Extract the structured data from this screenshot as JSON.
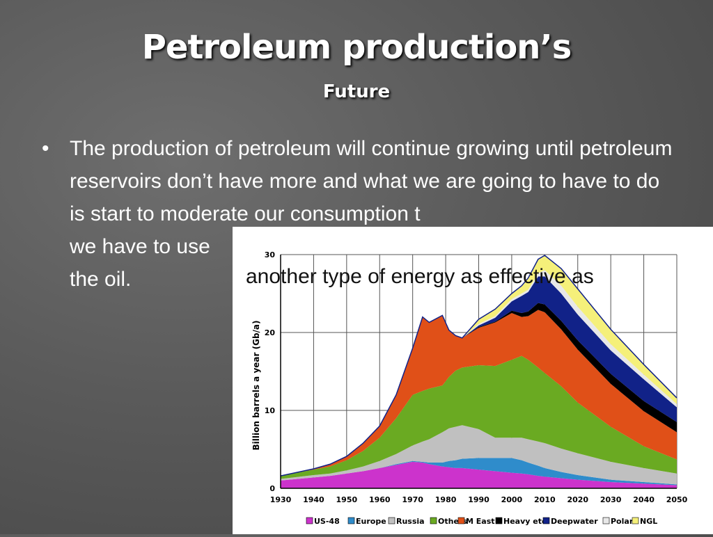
{
  "slide": {
    "title": "Petroleum production’s",
    "subtitle": "Future",
    "bullet": "•",
    "body_text": "The production of petroleum will continue growing until petroleum reservoirs don’t have more and what we are going to have to do is start to moderate our consumption t",
    "body_text_2": "we have to use",
    "body_text_3": "the oil.",
    "overlay_text": "another type of energy as effective as"
  },
  "chart_data": {
    "type": "area",
    "stacked": true,
    "ylabel": "Billion barrels a year (Gb/a)",
    "ylim": [
      0,
      30
    ],
    "yticks": [
      "0",
      "10",
      "20",
      "30"
    ],
    "xlim": [
      1930,
      2050
    ],
    "xticks": [
      "1930",
      "1940",
      "1950",
      "1960",
      "1970",
      "1980",
      "1990",
      "2000",
      "2010",
      "2020",
      "2030",
      "2040",
      "2050"
    ],
    "grid": true,
    "legend_position": "bottom",
    "x": [
      1930,
      1940,
      1945,
      1950,
      1955,
      1960,
      1965,
      1970,
      1973,
      1975,
      1979,
      1981,
      1983,
      1985,
      1990,
      1995,
      2000,
      2003,
      2005,
      2008,
      2010,
      2015,
      2020,
      2030,
      2040,
      2050
    ],
    "series": [
      {
        "name": "US-48",
        "color": "#cc33cc",
        "values": [
          1.0,
          1.4,
          1.6,
          1.9,
          2.2,
          2.6,
          3.0,
          3.4,
          3.3,
          3.1,
          2.8,
          2.7,
          2.6,
          2.6,
          2.4,
          2.2,
          2.0,
          1.9,
          1.8,
          1.6,
          1.5,
          1.3,
          1.1,
          0.8,
          0.6,
          0.4
        ]
      },
      {
        "name": "Europe",
        "color": "#2f8ccb",
        "values": [
          0.0,
          0.0,
          0.0,
          0.0,
          0.0,
          0.0,
          0.1,
          0.1,
          0.1,
          0.2,
          0.5,
          0.8,
          1.0,
          1.2,
          1.5,
          1.7,
          1.9,
          1.7,
          1.5,
          1.3,
          1.1,
          0.8,
          0.6,
          0.3,
          0.2,
          0.1
        ]
      },
      {
        "name": "Russia",
        "color": "#c0c0c0",
        "values": [
          0.2,
          0.3,
          0.3,
          0.4,
          0.6,
          0.9,
          1.3,
          2.0,
          2.6,
          3.0,
          3.9,
          4.2,
          4.3,
          4.3,
          3.7,
          2.6,
          2.6,
          2.9,
          3.0,
          3.1,
          3.2,
          3.0,
          2.8,
          2.3,
          1.8,
          1.4
        ]
      },
      {
        "name": "Others",
        "color": "#6aaa22",
        "values": [
          0.4,
          0.7,
          0.9,
          1.3,
          2.0,
          3.0,
          4.6,
          6.5,
          6.5,
          6.5,
          6.0,
          6.6,
          7.2,
          7.4,
          8.2,
          9.2,
          10.0,
          10.5,
          10.2,
          9.5,
          9.0,
          8.0,
          6.5,
          4.5,
          2.8,
          1.8
        ]
      },
      {
        "name": "M East",
        "color": "#e05018",
        "values": [
          0.0,
          0.1,
          0.3,
          0.5,
          1.0,
          1.5,
          3.0,
          6.0,
          9.5,
          8.5,
          9.0,
          6.0,
          4.5,
          3.8,
          4.8,
          5.6,
          6.0,
          5.0,
          5.6,
          7.4,
          7.8,
          7.3,
          6.8,
          5.5,
          4.5,
          3.5
        ]
      },
      {
        "name": "Heavy etc",
        "color": "#000000",
        "values": [
          0.0,
          0.0,
          0.0,
          0.0,
          0.0,
          0.0,
          0.0,
          0.0,
          0.0,
          0.0,
          0.0,
          0.0,
          0.0,
          0.0,
          0.1,
          0.1,
          0.3,
          0.5,
          0.6,
          0.9,
          1.0,
          1.1,
          1.2,
          1.3,
          1.3,
          1.3
        ]
      },
      {
        "name": "Deepwater",
        "color": "#112288",
        "values": [
          0.0,
          0.0,
          0.0,
          0.0,
          0.0,
          0.0,
          0.0,
          0.0,
          0.0,
          0.0,
          0.0,
          0.0,
          0.0,
          0.0,
          0.2,
          0.5,
          1.2,
          2.2,
          2.5,
          3.4,
          3.6,
          3.5,
          3.3,
          3.0,
          2.8,
          1.9
        ]
      },
      {
        "name": "Polar",
        "color": "#e8e8e8",
        "values": [
          0.0,
          0.0,
          0.0,
          0.0,
          0.0,
          0.0,
          0.0,
          0.0,
          0.0,
          0.0,
          0.0,
          0.0,
          0.0,
          0.0,
          0.2,
          0.2,
          0.3,
          0.3,
          0.3,
          0.4,
          0.8,
          1.0,
          1.0,
          0.8,
          0.6,
          0.4
        ]
      },
      {
        "name": "NGL",
        "color": "#f5f07a",
        "values": [
          0.0,
          0.0,
          0.0,
          0.0,
          0.0,
          0.0,
          0.0,
          0.0,
          0.0,
          0.0,
          0.0,
          0.0,
          0.0,
          0.0,
          0.6,
          0.9,
          0.7,
          1.0,
          1.5,
          1.8,
          1.9,
          2.2,
          2.3,
          1.9,
          1.3,
          0.8
        ]
      }
    ]
  }
}
